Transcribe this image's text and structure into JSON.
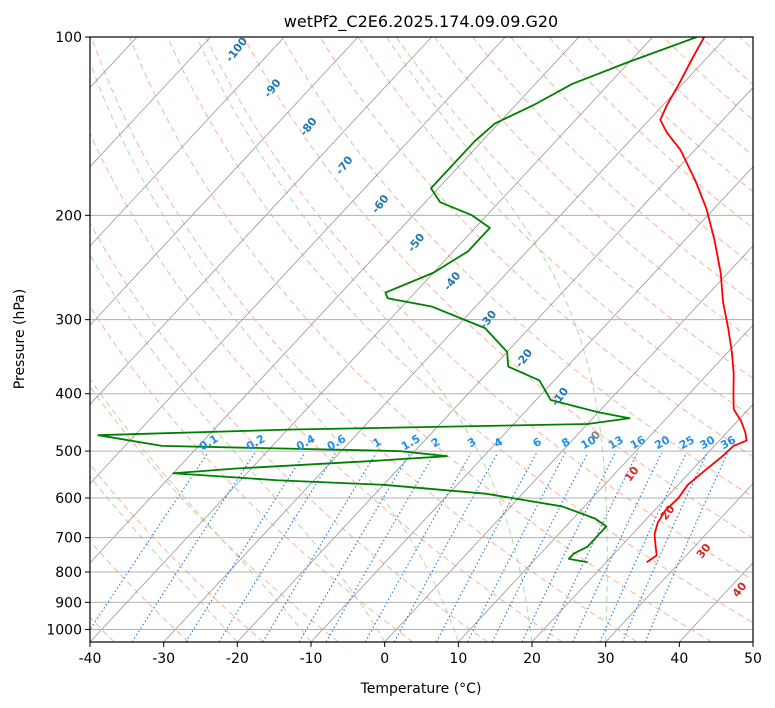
{
  "chart_data": {
    "type": "line",
    "title": "wetPf2_C2E6.2025.174.09.09.G20",
    "xlabel": "Temperature (°C)",
    "ylabel": "Pressure (hPa)",
    "xlim": [
      -40,
      50
    ],
    "ylim": [
      1050,
      100
    ],
    "y_scale": "log",
    "x_ticks": [
      -40,
      -30,
      -20,
      -10,
      0,
      10,
      20,
      30,
      40,
      50
    ],
    "y_ticks": [
      100,
      200,
      300,
      400,
      500,
      600,
      700,
      800,
      900,
      1000
    ],
    "grid": true,
    "series": [
      {
        "role": "temperature",
        "color": "#ff0000",
        "points": [
          {
            "p": 770,
            "t": 25.5
          },
          {
            "p": 750,
            "t": 26.0
          },
          {
            "p": 720,
            "t": 24.5
          },
          {
            "p": 690,
            "t": 23.0
          },
          {
            "p": 660,
            "t": 22.0
          },
          {
            "p": 630,
            "t": 21.5
          },
          {
            "p": 600,
            "t": 21.7
          },
          {
            "p": 570,
            "t": 21.3
          },
          {
            "p": 540,
            "t": 21.8
          },
          {
            "p": 510,
            "t": 22.4
          },
          {
            "p": 490,
            "t": 22.6
          },
          {
            "p": 480,
            "t": 23.7
          },
          {
            "p": 465,
            "t": 22.5
          },
          {
            "p": 445,
            "t": 20.5
          },
          {
            "p": 425,
            "t": 18.0
          },
          {
            "p": 400,
            "t": 16.0
          },
          {
            "p": 370,
            "t": 13.5
          },
          {
            "p": 340,
            "t": 10.5
          },
          {
            "p": 310,
            "t": 7.0
          },
          {
            "p": 280,
            "t": 3.0
          },
          {
            "p": 250,
            "t": -1.0
          },
          {
            "p": 220,
            "t": -6.0
          },
          {
            "p": 195,
            "t": -11.0
          },
          {
            "p": 175,
            "t": -16.0
          },
          {
            "p": 155,
            "t": -22.0
          },
          {
            "p": 145,
            "t": -26.0
          },
          {
            "p": 138,
            "t": -28.5
          },
          {
            "p": 130,
            "t": -29.5
          },
          {
            "p": 120,
            "t": -30.5
          },
          {
            "p": 108,
            "t": -32.0
          },
          {
            "p": 100,
            "t": -33.0
          }
        ]
      },
      {
        "role": "dewpoint",
        "color": "#008000",
        "points": [
          {
            "p": 770,
            "t": 17.5
          },
          {
            "p": 760,
            "t": 14.5
          },
          {
            "p": 745,
            "t": 14.5
          },
          {
            "p": 725,
            "t": 15.5
          },
          {
            "p": 700,
            "t": 15.5
          },
          {
            "p": 670,
            "t": 15.5
          },
          {
            "p": 650,
            "t": 13.0
          },
          {
            "p": 620,
            "t": 7.0
          },
          {
            "p": 590,
            "t": -5.0
          },
          {
            "p": 570,
            "t": -20.0
          },
          {
            "p": 560,
            "t": -35.0
          },
          {
            "p": 545,
            "t": -50.0
          },
          {
            "p": 535,
            "t": -42.0
          },
          {
            "p": 520,
            "t": -25.0
          },
          {
            "p": 510,
            "t": -15.0
          },
          {
            "p": 500,
            "t": -22.0
          },
          {
            "p": 490,
            "t": -55.0
          },
          {
            "p": 470,
            "t": -65.0
          },
          {
            "p": 460,
            "t": -40.0
          },
          {
            "p": 450,
            "t": 0.0
          },
          {
            "p": 440,
            "t": 5.0
          },
          {
            "p": 430,
            "t": 0.0
          },
          {
            "p": 410,
            "t": -8.0
          },
          {
            "p": 380,
            "t": -12.0
          },
          {
            "p": 360,
            "t": -18.0
          },
          {
            "p": 340,
            "t": -20.0
          },
          {
            "p": 310,
            "t": -26.0
          },
          {
            "p": 285,
            "t": -36.0
          },
          {
            "p": 276,
            "t": -43.0
          },
          {
            "p": 270,
            "t": -44.0
          },
          {
            "p": 250,
            "t": -40.0
          },
          {
            "p": 230,
            "t": -38.0
          },
          {
            "p": 210,
            "t": -38.0
          },
          {
            "p": 200,
            "t": -42.0
          },
          {
            "p": 190,
            "t": -48.0
          },
          {
            "p": 180,
            "t": -51.0
          },
          {
            "p": 165,
            "t": -51.0
          },
          {
            "p": 150,
            "t": -51.0
          },
          {
            "p": 140,
            "t": -50.5
          },
          {
            "p": 130,
            "t": -47.5
          },
          {
            "p": 120,
            "t": -45.0
          },
          {
            "p": 110,
            "t": -40.0
          },
          {
            "p": 100,
            "t": -34.0
          }
        ]
      }
    ],
    "dry_adiabat_labels": [
      "-100",
      "-90",
      "-80",
      "-70",
      "-60",
      "-50",
      "-40",
      "-30",
      "-20",
      "-10",
      "0",
      "10",
      "20",
      "30",
      "40"
    ],
    "mixing_ratio_labels": [
      "0.1",
      "0.2",
      "0.4",
      "0.6",
      "1",
      "1.5",
      "2",
      "3",
      "4",
      "6",
      "8",
      "10",
      "13",
      "16",
      "20",
      "25",
      "30",
      "36"
    ],
    "mixing_ratio_values": [
      0.1,
      0.2,
      0.4,
      0.6,
      1,
      1.5,
      2,
      3,
      4,
      6,
      8,
      10,
      13,
      16,
      20,
      25,
      30,
      36
    ],
    "colors": {
      "isotherm": "#8c8c8c",
      "isobar": "#b0b0b0",
      "dry_adiabat": "#f7a789",
      "moist_adiabat": "#a6d6a0",
      "mixing_ratio": "#1f77e0",
      "label_blue": "#1f77b4",
      "label_red": "#d62728",
      "label_gray": "#808080"
    }
  }
}
